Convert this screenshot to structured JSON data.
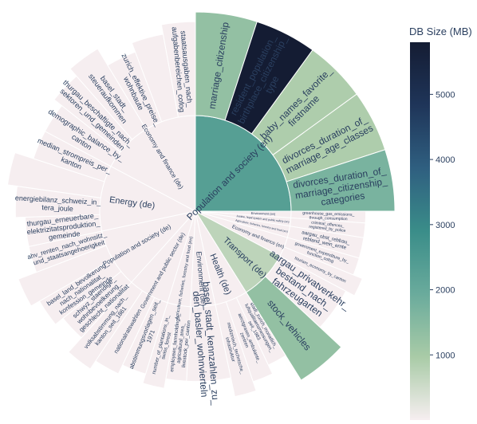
{
  "chart_data": {
    "type": "sunburst",
    "colorbar": {
      "title": "DB Size (MB)",
      "range": [
        0,
        5800
      ],
      "ticks": [
        1000,
        2000,
        3000,
        4000,
        5000
      ],
      "colors": [
        "#f6eef0",
        "#a9cba7",
        "#6aab9c",
        "#3a8d89",
        "#2f5f80",
        "#1f3559",
        "#141c33"
      ]
    },
    "root_groups": [
      {
        "name": "Energy (de)",
        "children": [
          {
            "name": "thurgau_erneuerbare_elektrizitatsproduktion_gemeinde",
            "value": 0
          },
          {
            "name": "energiebilanz_schweiz_in_tera_joule",
            "value": 0
          },
          {
            "name": "basel_land_elektrizitaets_von_erneuerb_pvanlagen_ungleich_gemeinde",
            "value": 0
          },
          {
            "name": "median_strompreis_per_kanton",
            "value": 0
          }
        ]
      },
      {
        "name": "Population and society (de)",
        "children": [
          {
            "name": "schwyz_staendige_wohnbevoelkerung_geschlecht_nationalitat",
            "value": 0
          },
          {
            "name": "basel_land_bevolkerung_nach_nationalitat_konfession_gemeinde",
            "value": 0
          },
          {
            "name": "aargau_brandversicherung_brandschaden_anzahl_schadensummen",
            "value": 0
          },
          {
            "name": "ahv_renten_nach_wohnsitz_und_staatsangehoerigkeit",
            "value": 0
          }
        ]
      },
      {
        "name": "Government and public sector (de)",
        "children": [
          {
            "name": "abstimmungsvorlagen_seit_1971",
            "value": 0
          },
          {
            "name": "nationalratswahlen",
            "value": 0
          },
          {
            "name": "volksabstimmung_nach_kanton_seit_1861",
            "value": 0
          }
        ]
      },
      {
        "name": "Agriculture, fisheries, forestry and food (en)",
        "children": [
          {
            "name": "employees_farmholdings_agricultural_area_livestock_per_canton",
            "value": 0
          },
          {
            "name": "number_of_plantations_in_swiss_forest",
            "value": 0
          }
        ]
      },
      {
        "name": "Environment (de)",
        "children": [
          {
            "name": "basel_stadt_kennzahlen_zu_den_basler_wohnvierteln",
            "value": 0
          }
        ]
      },
      {
        "name": "Health (de)",
        "children": [
          {
            "name": "stadt_zurich_monatlich_luftqualitaetsmessungen_seit_1983",
            "value": 0
          },
          {
            "name": "aerztgraxen_ambulante_zentren",
            "value": 0
          },
          {
            "name": "medizinisch_technische_infrastruktur",
            "value": 0
          }
        ]
      },
      {
        "name": "Transport (de)",
        "children": [
          {
            "name": "aargau_privatverkehr_bestand_nach_fahrzeugarten",
            "value": 0
          },
          {
            "name": "stock_vehicles",
            "value": 1300
          }
        ]
      },
      {
        "name": "Economy and finance (en)",
        "children": [
          {
            "name": "government_expenditure_by_function_cofog",
            "value": 0
          },
          {
            "name": "tourism_economy_by_canton",
            "value": 0
          }
        ]
      },
      {
        "name": "Agriculture, fisheries, forestry and food (en) small",
        "children": [
          {
            "name": "aargau_obst_rebbau_rebland_wein_ernte",
            "value": 0
          }
        ]
      },
      {
        "name": "Justice, legal system and public safety (en)",
        "children": [
          {
            "name": "criminal_offences_registered_by_police",
            "value": 0
          }
        ]
      },
      {
        "name": "Environment (en)",
        "children": [
          {
            "name": "greenhouse_gas_emissions_through_consumption",
            "value": 0
          }
        ]
      },
      {
        "name": "Population and society (en)",
        "children": [
          {
            "name": "marriage_citizenship",
            "value": 1300
          },
          {
            "name": "resident_population_birthplace_citizenship_type",
            "value": 5800
          },
          {
            "name": "baby_names_favorite_firstname",
            "value": 900
          },
          {
            "name": "divorces_duration_of_marriage_age_classes",
            "value": 900
          },
          {
            "name": "divorces_duration_of_marriage_citizenship_categories",
            "value": 1700
          }
        ]
      },
      {
        "name": "Economy and finance (de)",
        "children": [
          {
            "name": "demographic_balance_by_canton",
            "value": 0
          },
          {
            "name": "thurgau_beschaftigte_nach_sektoren_und_gemeinden",
            "value": 0
          },
          {
            "name": "basel_stadt_steueraufkommen",
            "value": 0
          },
          {
            "name": "zurich_effektive_preise_wohnbaute",
            "value": 0
          },
          {
            "name": "basel_land_gemeinderechnungen",
            "value": 0
          },
          {
            "name": "staatsausgaben_nach_aufgabenbereichen_cofog",
            "value": 0
          }
        ]
      }
    ]
  },
  "visible_text": {
    "root_labels": [
      "Energy (de)",
      "Population and society (de)",
      "Government and public sector (de)",
      "Agriculture, fisheries, forestry and food (en)",
      "Environment (de)",
      "Health (de)",
      "Transport (de)",
      "Economy and finance (en)",
      "Environment (en)",
      "Justice, legal system and public safety (en)",
      "Agriculture, fisheries, forestry and food (en)",
      "Population and society (en)",
      "Economy and finance (de)"
    ],
    "leaf_labels": [
      "marriage_citizenship",
      "resident_population_ birthplace_citizenship_ type",
      "baby_names_favorite_ firstname",
      "divorces_duration_of_ marriage_age_classes",
      "divorces_duration_of_ marriage_citizenship_ categories",
      "demographic_balance_by_ canton",
      "thurgau_beschaftigte_nach_ sektoren_und_gemeinden",
      "basel_stadt_ steueraufkommen",
      "zurich_effektive_preise_ wohnbaute",
      "staatsausgaben_nach_ aufgabenbereichen_cofog",
      "thurgau_erneuerbare_ elektrizitatsproduktion_ gemeinde",
      "energiebilanz_schweiz_in_ tera_joule",
      "median_strompreis_per_ kanton",
      "schwyz_staendige_ wohnbevoelkerung_ geschlecht_nationalitat",
      "basel_land_bevolkerung_ nach_nationalitat_ konfession_gemeinde",
      "ahv_renten_nach_wohnsitz_ und_staatsangehoerigkeit",
      "abstimmungsvorlagen_seit_ 1971",
      "nationalratswahlen",
      "volksabstimmung_nach_ kanton_seit_1861",
      "employees_farmholdings_ agricultural_area_ livestock_per_canton",
      "number_of_plantations_in_ swiss_forest",
      "basel_stadt_kennzahlen_zu_ den_basler_wohnvierteln",
      "stadt_zurich_monatlich_ luftqualitaetsmessungen_ seit_1983",
      "aerztgraxen_ambulante_ zentren",
      "medizinisch_technische_ infrastruktur",
      "aargau_privatverkehr_ bestand_nach_ fahrzeugarten",
      "stock_vehicles",
      "government_expenditure_by_ function_cofog",
      "tourism_economy_by_canton",
      "aargau_obst_rebbau_ rebland_wein_ernte",
      "criminal_offences_ registered_by_police",
      "greenhouse_gas_emissions_ through_consumption"
    ]
  }
}
